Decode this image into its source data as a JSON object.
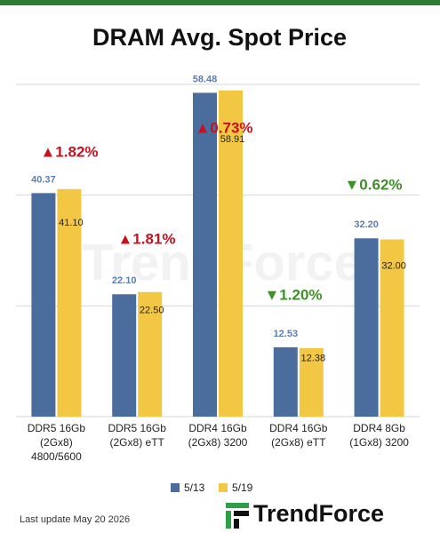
{
  "chart_data": {
    "type": "bar",
    "title": "DRAM Avg. Spot Price",
    "categories": [
      [
        "DDR5 16Gb",
        "(2Gx8)",
        "4800/5600"
      ],
      [
        "DDR5 16Gb",
        "(2Gx8) eTT"
      ],
      [
        "DDR4 16Gb",
        "(2Gx8) 3200"
      ],
      [
        "DDR4 16Gb",
        "(2Gx8) eTT"
      ],
      [
        "DDR4 8Gb",
        "(1Gx8) 3200"
      ]
    ],
    "series": [
      {
        "name": "5/13",
        "color": "#4a6d9e",
        "values": [
          40.37,
          22.1,
          58.48,
          12.53,
          32.2
        ],
        "value_labels": [
          "40.37",
          "22.10",
          "58.48",
          "12.53",
          "32.20"
        ]
      },
      {
        "name": "5/19",
        "color": "#f2c744",
        "values": [
          41.1,
          22.5,
          58.91,
          12.38,
          32.0
        ],
        "value_labels": [
          "41.10",
          "22.50",
          "58.91",
          "12.38",
          "32.00"
        ]
      }
    ],
    "annotations": [
      {
        "text": "▲1.82%",
        "color": "#c8101e"
      },
      {
        "text": "▲1.81%",
        "color": "#c8101e"
      },
      {
        "text": "▲0.73%",
        "color": "#c8101e"
      },
      {
        "text": "▼1.20%",
        "color": "#3f8f2a"
      },
      {
        "text": "▼0.62%",
        "color": "#3f8f2a"
      }
    ],
    "ylim": [
      0,
      60
    ],
    "yticks": [
      0,
      20,
      40,
      60
    ],
    "grid": true,
    "watermark": "TrendForce",
    "footer": "Last update  May 20  2026",
    "logo": "TrendForce"
  }
}
